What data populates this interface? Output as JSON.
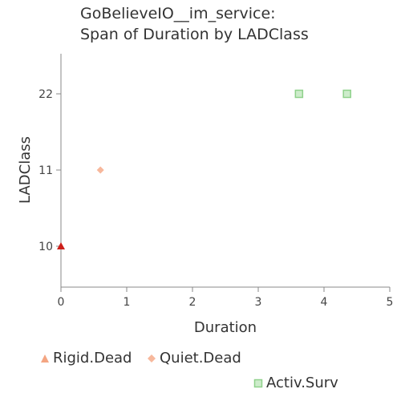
{
  "chart_data": {
    "type": "scatter",
    "title_lines": [
      "GoBelieveIO__im_service:",
      "Span of Duration by LADClass"
    ],
    "xlabel": "Duration",
    "ylabel": "LADClass",
    "xlim": [
      0,
      5
    ],
    "x_ticks": [
      "0",
      "1",
      "2",
      "3",
      "4",
      "5"
    ],
    "y_categories": [
      "10",
      "11",
      "22"
    ],
    "grid": false,
    "legend_position": "bottom",
    "series": [
      {
        "name": "Rigid.Dead",
        "marker": "triangle",
        "color": "#cc1f1a",
        "legend_color": "#f4a582",
        "points": [
          {
            "x": 0.0,
            "y": "10"
          }
        ]
      },
      {
        "name": "Quiet.Dead",
        "marker": "diamond",
        "color": "#f7b89c",
        "legend_color": "#f7b89c",
        "points": [
          {
            "x": 0.6,
            "y": "11"
          }
        ]
      },
      {
        "name": "Activ.Surv",
        "marker": "square",
        "color": "#8fd18b",
        "legend_color": "#8fd18b",
        "points": [
          {
            "x": 3.62,
            "y": "22"
          },
          {
            "x": 4.35,
            "y": "22"
          }
        ]
      }
    ]
  }
}
